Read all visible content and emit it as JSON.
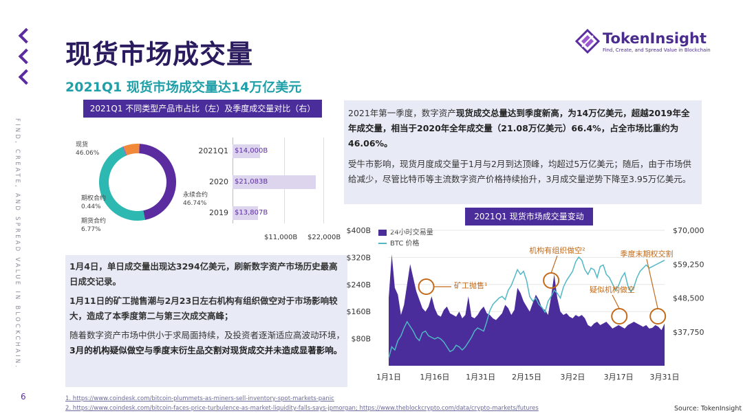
{
  "page": {
    "title": "现货市场成交量",
    "subtitle": "2021Q1 现货市场成交量达14万亿美元",
    "page_number": "6",
    "vertical_text": "FIND, CREATE, AND SPREAD VALUE IN BLOCKCHAIN."
  },
  "logo": {
    "name": "TokenInsight",
    "tagline": "Find, Create, and Spread Value in Blockchain"
  },
  "left_panel": {
    "header": "2021Q1 不同类型产品市占比（左）及季度成交量对比（右）",
    "donut": [
      {
        "name": "现货",
        "pct": "46.06%",
        "value": 46.06,
        "color": "#5b2ca0"
      },
      {
        "name": "永续合约",
        "pct": "46.74%",
        "value": 46.74,
        "color": "#2eb8b2"
      },
      {
        "name": "期权合约",
        "pct": "0.44%",
        "value": 0.44,
        "color": "#9b59d0"
      },
      {
        "name": "期货合约",
        "pct": "6.77%",
        "value": 6.77,
        "color": "#f08a3a"
      }
    ],
    "bars": [
      {
        "label": "2021Q1",
        "value_label": "$14,000B",
        "value": 14000
      },
      {
        "label": "2020",
        "value_label": "$21,083B",
        "value": 21083
      },
      {
        "label": "2019",
        "value_label": "$13,807B",
        "value": 13807
      }
    ],
    "bar_axis": [
      "$11,000B",
      "$22,000B"
    ]
  },
  "right_text": {
    "p1_plain1": "2021年第一季度，数字资产",
    "p1_bold": "现货成交总量达到季度新高，为14万亿美元，超越2019年全年成交量，相当于2020年全年成交量（21.08万亿美元）66.4%，占全市场比重约为46.06%。",
    "p2": "受牛市影响，现货月度成交量于1月与2月到达顶峰，均超过5万亿美元；随后，由于市场供给减少，尽管比特币等主流数字资产价格持续抬升，3月成交量逆势下降至3.95万亿美元。"
  },
  "left_text": {
    "p1": "1月4日，单日成交量出现达3294亿美元，刷新数字资产市场历史最高日成交记录。",
    "p2": "1月11日的矿工抛售潮与2月23日左右机构有组织做空对于市场影响较大，造成了本季度第二与第三次成交高峰；",
    "p3_plain": "随着数字资产市场中供小于求局面持续，及投资者逐渐适应高波动环境，",
    "p3_bold": "3月的机构疑似做空与季度末衍生品交割对现货成交并未造成显著影响。"
  },
  "chart_data": {
    "type": "area",
    "title": "2021Q1 现货市场成交量变动",
    "legend": [
      "24小时交易量",
      "BTC 价格"
    ],
    "x_ticks": [
      "1月1日",
      "1月16日",
      "1月31日",
      "2月15日",
      "3月2日",
      "3月17日",
      "3月31日"
    ],
    "y_left_ticks": [
      "$400B",
      "$320B",
      "$240B",
      "$160B",
      "$80B"
    ],
    "y_right_ticks": [
      "$70,000",
      "$59,250",
      "$48,500",
      "$37,750"
    ],
    "ylim_left": [
      0,
      400
    ],
    "ylim_right": [
      27000,
      70000
    ],
    "volume": [
      200,
      329,
      230,
      210,
      150,
      180,
      240,
      300,
      260,
      220,
      195,
      170,
      160,
      175,
      205,
      170,
      150,
      145,
      165,
      175,
      155,
      150,
      145,
      160,
      140,
      150,
      205,
      145,
      140,
      150,
      165,
      175,
      155,
      150,
      140,
      135,
      145,
      155,
      180,
      170,
      150,
      165,
      230,
      215,
      190,
      175,
      160,
      185,
      210,
      195,
      170,
      165,
      150,
      205,
      270,
      200,
      160,
      150,
      155,
      145,
      140,
      150,
      145,
      150,
      140,
      120,
      115,
      125,
      130,
      120,
      125,
      130,
      120,
      110,
      115,
      120,
      115,
      110,
      120,
      125,
      130,
      125,
      120,
      115,
      120,
      110,
      112,
      120,
      115,
      105,
      125
    ],
    "btc": [
      29500,
      33000,
      32000,
      35000,
      36500,
      39000,
      41000,
      39500,
      38000,
      36000,
      35000,
      37500,
      38000,
      36500,
      36000,
      35500,
      36000,
      35500,
      34500,
      33000,
      31500,
      32000,
      33500,
      33000,
      32000,
      33000,
      34500,
      36000,
      38000,
      39000,
      38500,
      38000,
      41000,
      44500,
      46500,
      47500,
      48500,
      49000,
      48000,
      51000,
      52500,
      55000,
      57500,
      56000,
      57000,
      54000,
      49000,
      47500,
      48500,
      46500,
      45500,
      44000,
      47500,
      49000,
      51000,
      50000,
      48500,
      52000,
      54000,
      55500,
      57000,
      60000,
      61500,
      60500,
      57500,
      56000,
      58000,
      57500,
      55000,
      58500,
      59000,
      56000,
      55000,
      53000,
      51000,
      52500,
      55000,
      56500,
      52500,
      50500,
      52000,
      55000,
      57000,
      58000,
      59000,
      58000,
      58500,
      59000,
      59500,
      60000,
      60500
    ],
    "annotations": [
      {
        "text": "矿工抛售¹",
        "index": 10
      },
      {
        "text": "机构有组织做空²",
        "index": 53
      },
      {
        "text": "疑似机构做空",
        "index": 73
      },
      {
        "text": "季度末期权交割",
        "index": 86
      }
    ],
    "x_label": "",
    "y_label": ""
  },
  "footer": {
    "link1": "1. https://www.coindesk.com/bitcoin-plummets-as-miners-sell-inventory-spot-markets-panic",
    "link2": "2. https://www.coindesk.com/bitcoin-faces-price-turbulence-as-market-liquidity-falls-says-jpmorgan; https://www.theblockcrypto.com/data/crypto-markets/futures",
    "source": "Source: TokenInsight"
  },
  "colors": {
    "accent": "#4a2c9a",
    "teal": "#1fa0a8",
    "orange": "#c26a1a",
    "box": "#e8ebf6"
  }
}
